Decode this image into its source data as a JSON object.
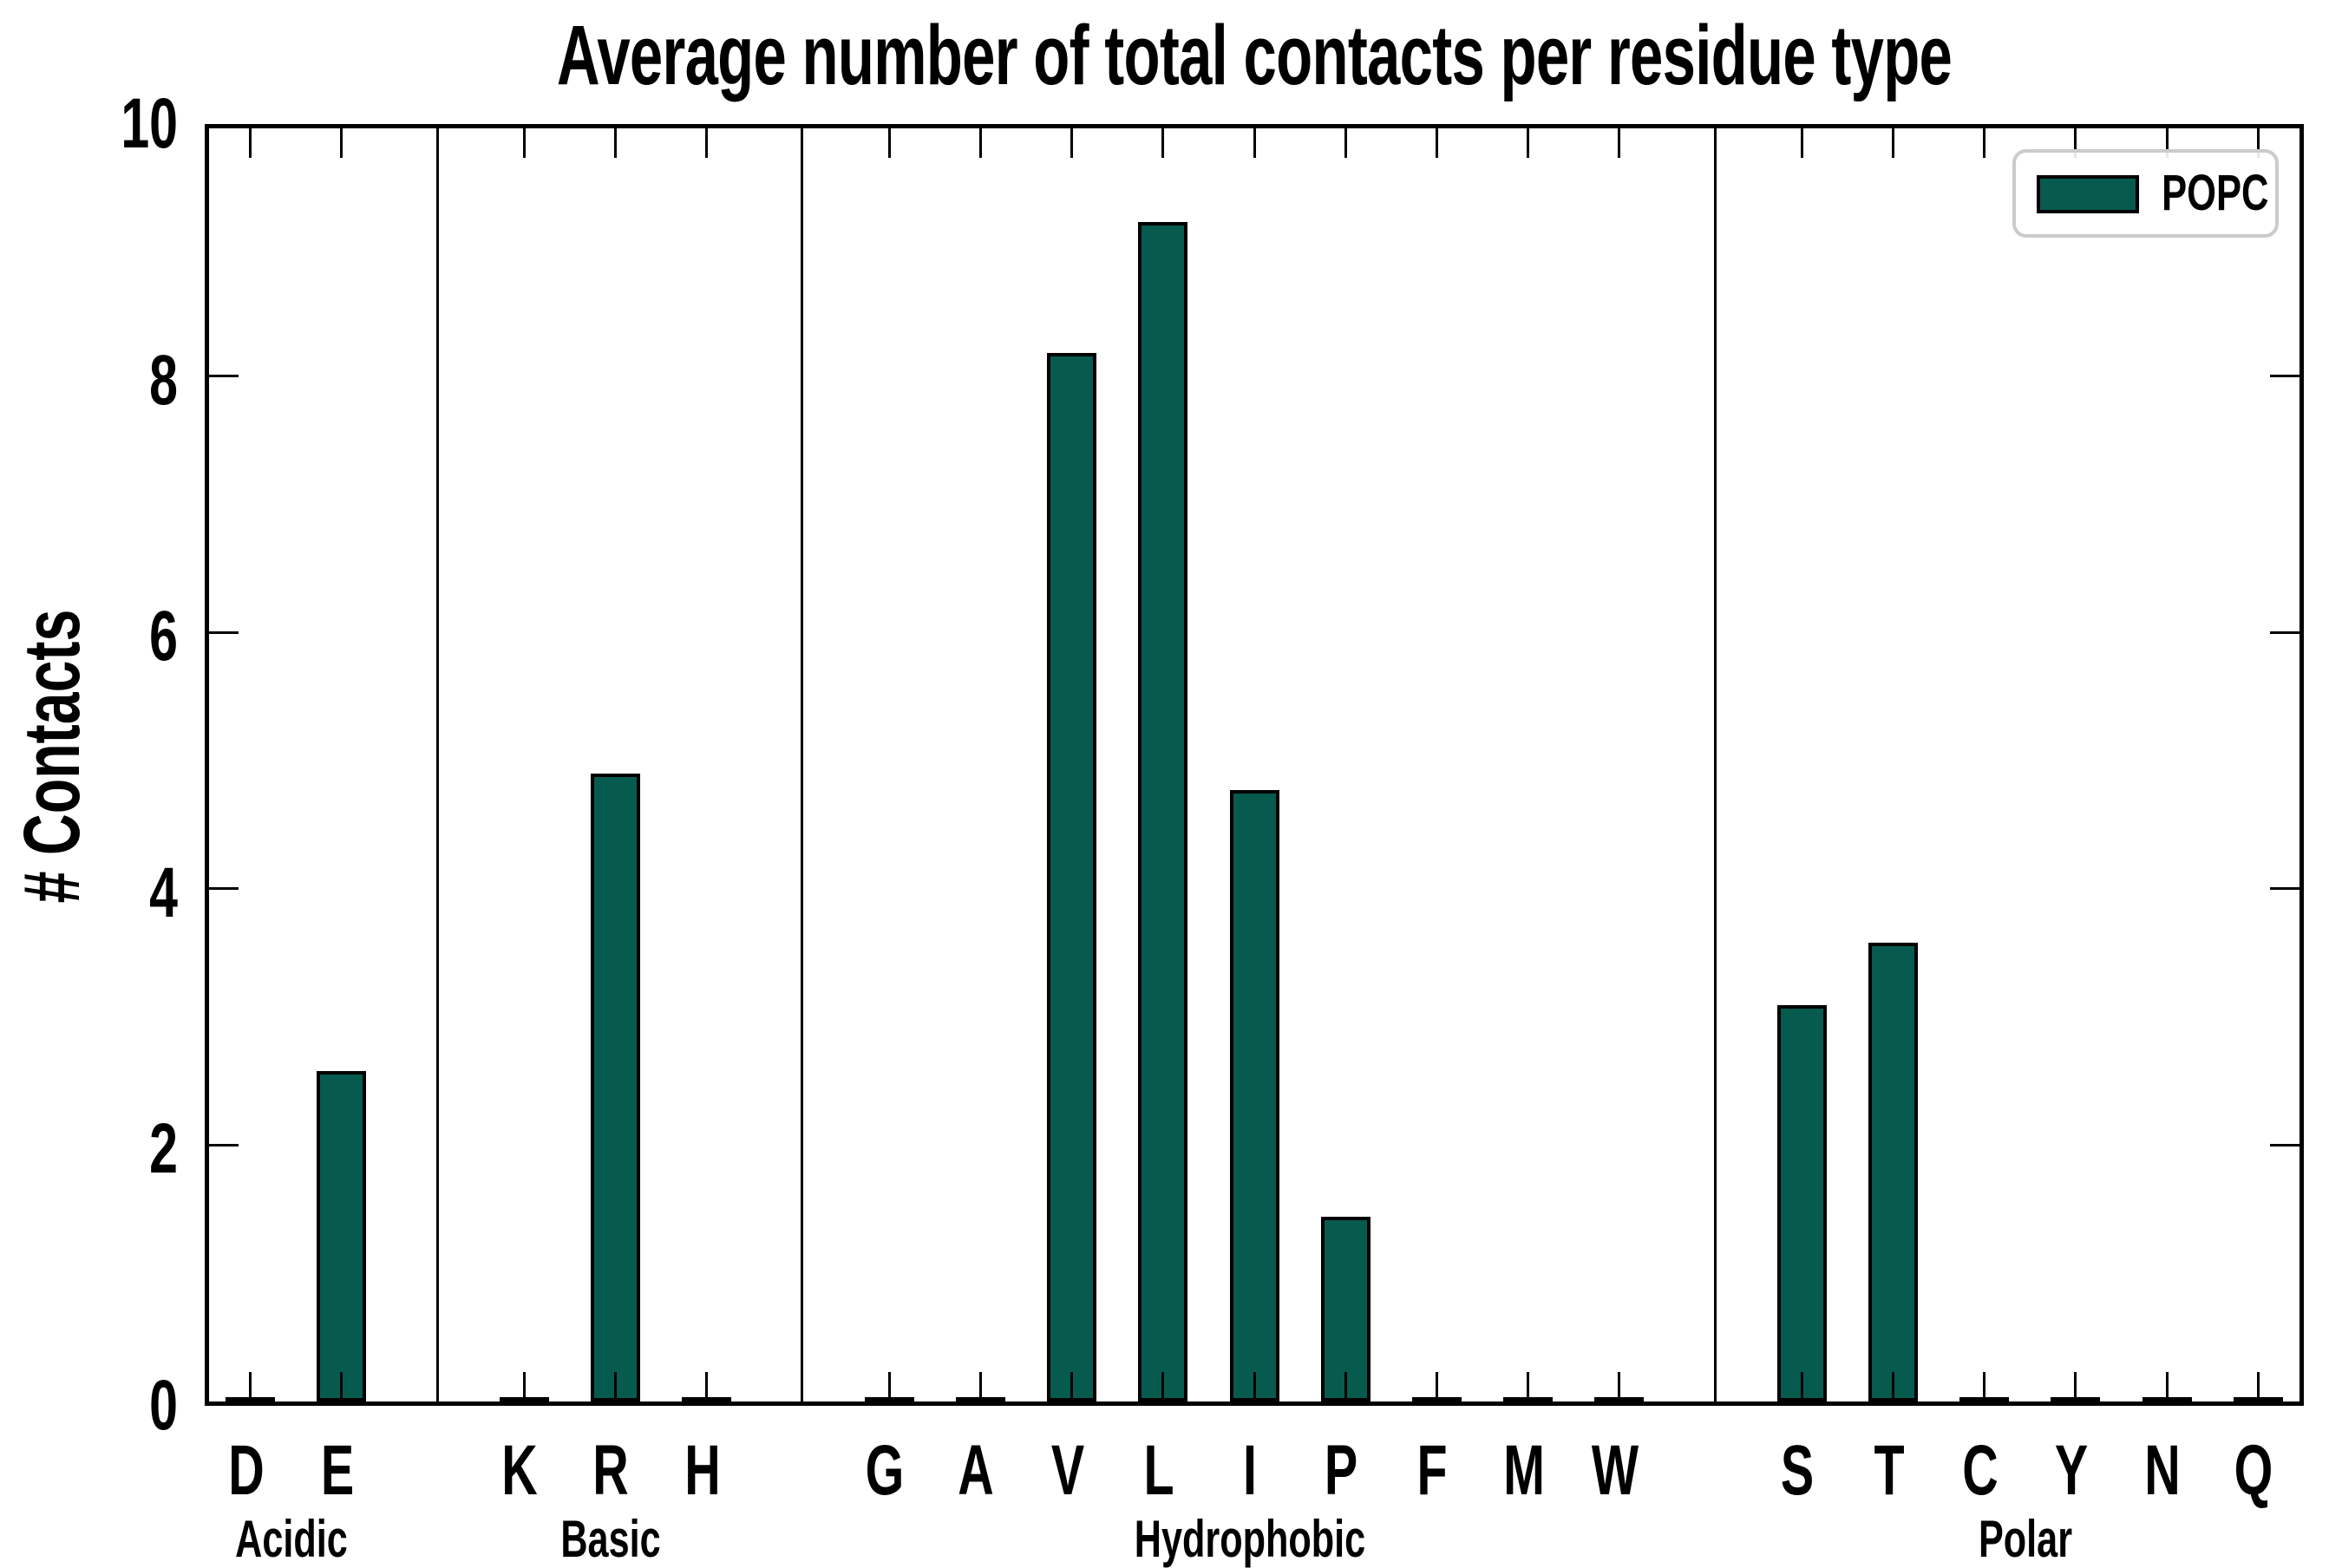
{
  "page": {
    "background_color": "#ffffff",
    "text_color": "#000000"
  },
  "chart_data": {
    "type": "bar",
    "title": "Average number of total contacts per residue type",
    "ylabel": "# Contacts",
    "xlabel": "",
    "ylim": [
      0,
      10
    ],
    "yticks": [
      0,
      2,
      4,
      6,
      8,
      10
    ],
    "grid": false,
    "tick_direction": "in",
    "bar_color": "#075B4E",
    "bar_edge_color": "#000000",
    "axis_color": "#000000",
    "legend": {
      "position": "upper right",
      "entries": [
        {
          "label": "POPC",
          "color": "#075B4E"
        }
      ]
    },
    "groups": [
      {
        "label": "Acidic",
        "categories": [
          "D",
          "E"
        ],
        "values": [
          0,
          2.58
        ]
      },
      {
        "label": "Basic",
        "categories": [
          "K",
          "R",
          "H"
        ],
        "values": [
          0,
          4.9,
          0
        ]
      },
      {
        "label": "Hydrophobic",
        "categories": [
          "G",
          "A",
          "V",
          "L",
          "I",
          "P",
          "F",
          "M",
          "W"
        ],
        "values": [
          0,
          0,
          8.18,
          9.2,
          4.77,
          1.44,
          0,
          0,
          0
        ]
      },
      {
        "label": "Polar",
        "categories": [
          "S",
          "T",
          "C",
          "Y",
          "N",
          "Q"
        ],
        "values": [
          3.09,
          3.58,
          0,
          0,
          0,
          0
        ]
      }
    ]
  }
}
